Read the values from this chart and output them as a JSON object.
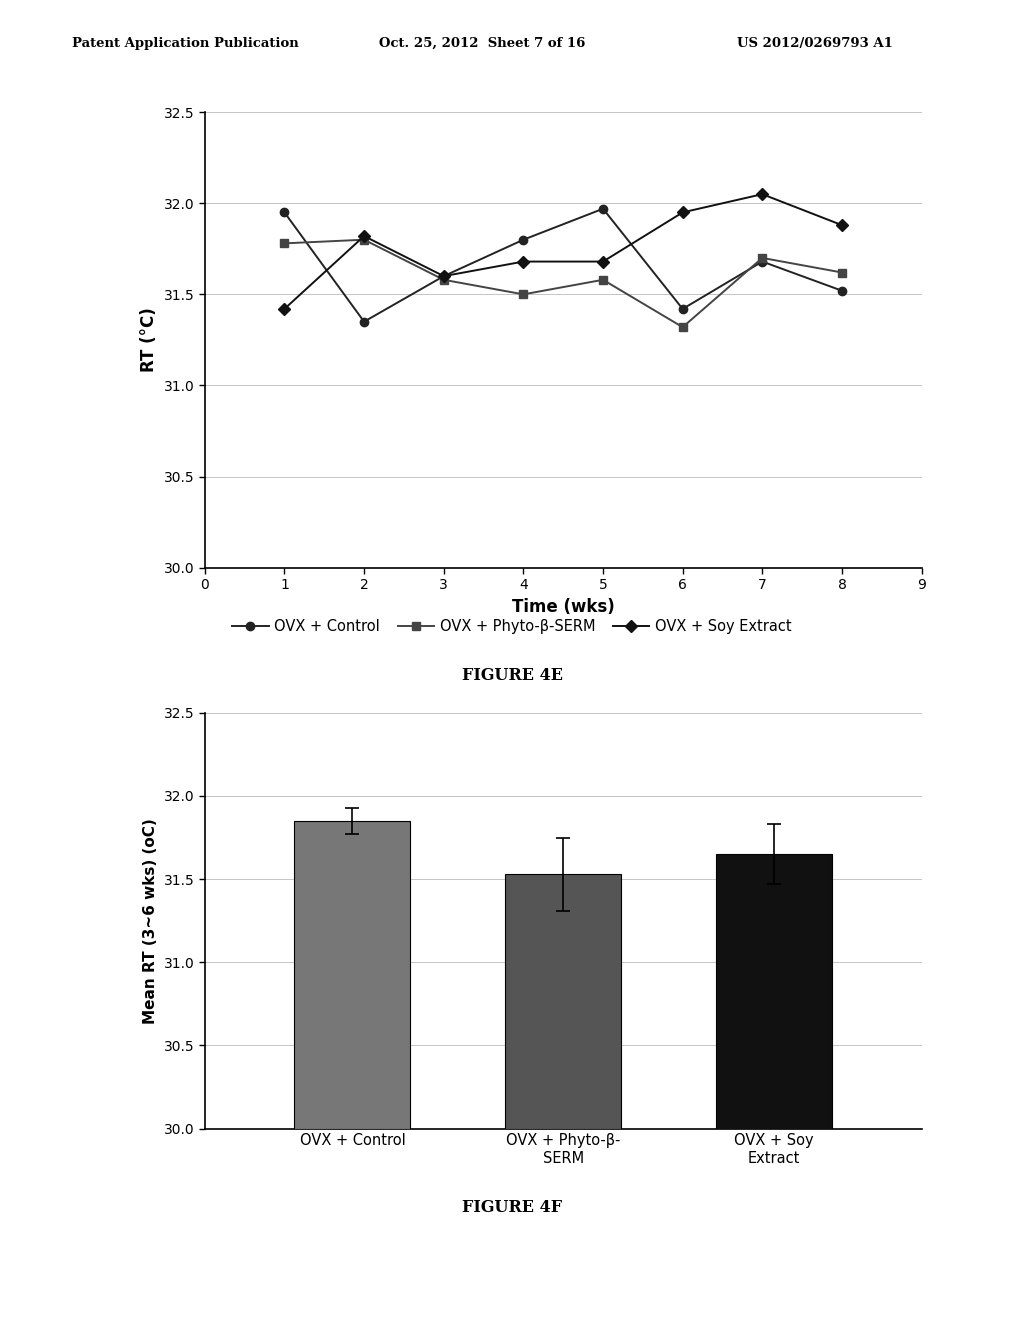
{
  "header_left": "Patent Application Publication",
  "header_center": "Oct. 25, 2012  Sheet 7 of 16",
  "header_right": "US 2012/0269793 A1",
  "fig4e_title": "FIGURE 4E",
  "line_x": [
    1,
    2,
    3,
    4,
    5,
    6,
    7,
    8
  ],
  "line_control": [
    31.95,
    31.35,
    31.6,
    31.8,
    31.97,
    31.42,
    31.68,
    31.52
  ],
  "line_phyto": [
    31.78,
    31.8,
    31.58,
    31.5,
    31.58,
    31.32,
    31.7,
    31.62
  ],
  "line_soy": [
    31.42,
    31.82,
    31.6,
    31.68,
    31.68,
    31.95,
    32.05,
    31.88
  ],
  "line_xlabel": "Time (wks)",
  "line_ylabel": "RT (°C)",
  "line_xlim": [
    0,
    9
  ],
  "line_ylim": [
    30.0,
    32.5
  ],
  "line_yticks": [
    30.0,
    30.5,
    31.0,
    31.5,
    32.0,
    32.5
  ],
  "line_xticks": [
    0,
    1,
    2,
    3,
    4,
    5,
    6,
    7,
    8,
    9
  ],
  "legend_labels": [
    "OVX + Control",
    "OVX + Phyto-β-SERM",
    "OVX + Soy Extract"
  ],
  "fig4f_title": "FIGURE 4F",
  "bar_categories": [
    "OVX + Control",
    "OVX + Phyto-β-\nSERM",
    "OVX + Soy\nExtract"
  ],
  "bar_values": [
    31.85,
    31.53,
    31.65
  ],
  "bar_errors": [
    0.08,
    0.22,
    0.18
  ],
  "bar_colors": [
    "#777777",
    "#555555",
    "#111111"
  ],
  "bar_ylabel": "Mean RT (3~6 wks) (oC)",
  "bar_ylim": [
    30.0,
    32.5
  ],
  "bar_yticks": [
    30.0,
    30.5,
    31.0,
    31.5,
    32.0,
    32.5
  ],
  "bg_color": "#ffffff",
  "text_color": "#000000",
  "line_color_control": "#222222",
  "line_color_phyto": "#444444",
  "line_color_soy": "#111111"
}
